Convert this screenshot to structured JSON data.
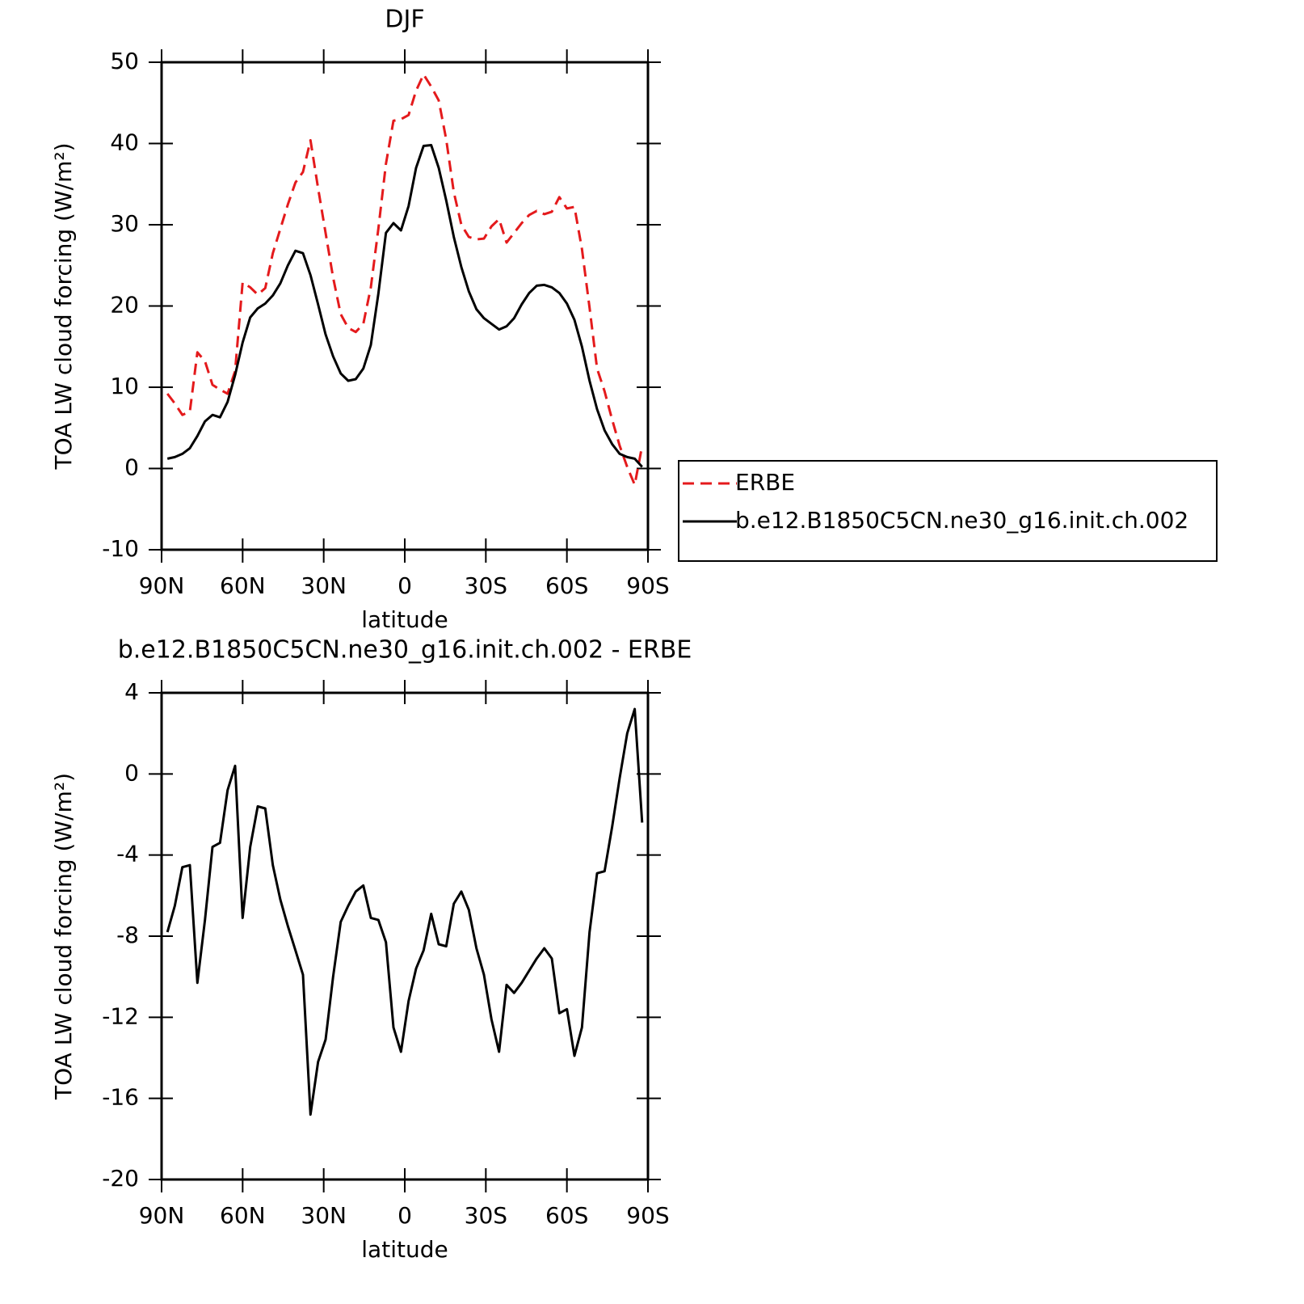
{
  "chart_data": [
    {
      "type": "line",
      "title": "DJF",
      "xlabel": "latitude",
      "ylabel": "TOA LW cloud forcing (W/m²)",
      "x": [
        87.86,
        85.1,
        82.31,
        79.53,
        76.74,
        73.95,
        71.16,
        68.37,
        65.58,
        62.79,
        60.0,
        57.21,
        54.42,
        51.63,
        48.84,
        46.05,
        43.26,
        40.47,
        37.67,
        34.88,
        32.09,
        29.3,
        26.51,
        23.72,
        20.93,
        18.14,
        15.35,
        12.56,
        9.77,
        6.98,
        4.19,
        1.4,
        -1.4,
        -4.19,
        -6.98,
        -9.77,
        -12.56,
        -15.35,
        -18.14,
        -20.93,
        -23.72,
        -26.51,
        -29.3,
        -32.09,
        -34.88,
        -37.67,
        -40.47,
        -43.26,
        -46.05,
        -48.84,
        -51.63,
        -54.42,
        -57.21,
        -60.0,
        -62.79,
        -65.58,
        -68.37,
        -71.16,
        -73.95,
        -76.74,
        -79.53,
        -82.31,
        -85.1,
        -87.86
      ],
      "series": [
        {
          "name": "ERBE",
          "color": "#e41a1c",
          "dash": "dashed",
          "values": [
            9.2,
            8.0,
            6.6,
            7.0,
            14.3,
            13.2,
            10.3,
            9.7,
            9.2,
            12.0,
            22.9,
            22.3,
            21.4,
            22.2,
            26.5,
            29.5,
            32.5,
            35.2,
            36.5,
            40.4,
            34.5,
            29.0,
            23.5,
            19.0,
            17.3,
            16.8,
            17.8,
            22.3,
            29.5,
            37.5,
            42.8,
            43.0,
            43.5,
            46.5,
            48.5,
            47.0,
            45.3,
            40.5,
            34.0,
            30.0,
            28.5,
            28.2,
            28.3,
            29.8,
            30.7,
            27.8,
            29.0,
            30.2,
            31.2,
            31.7,
            31.3,
            31.6,
            33.4,
            32.0,
            32.2,
            27.0,
            19.8,
            12.3,
            9.5,
            6.0,
            2.8,
            0.2,
            -2.0,
            2.8
          ]
        },
        {
          "name": "b.e12.B1850C5CN.ne30_g16.init.ch.002",
          "color": "#000000",
          "dash": "solid",
          "values": [
            1.2,
            1.4,
            1.8,
            2.5,
            4.0,
            5.8,
            6.6,
            6.3,
            8.2,
            11.5,
            15.5,
            18.6,
            19.7,
            20.3,
            21.3,
            22.8,
            25.0,
            26.8,
            26.5,
            23.8,
            20.2,
            16.5,
            13.8,
            11.7,
            10.8,
            11.0,
            12.3,
            15.2,
            21.5,
            29.0,
            30.2,
            29.3,
            32.3,
            37.0,
            39.7,
            39.8,
            37.0,
            33.0,
            28.5,
            24.8,
            21.8,
            19.6,
            18.5,
            17.8,
            17.1,
            17.5,
            18.5,
            20.2,
            21.6,
            22.5,
            22.6,
            22.3,
            21.6,
            20.3,
            18.3,
            15.0,
            10.8,
            7.3,
            4.7,
            3.0,
            1.8,
            1.4,
            1.2,
            0.2
          ]
        }
      ],
      "xlim": [
        90,
        -90
      ],
      "xticks": [
        {
          "value": 90,
          "label": "90N"
        },
        {
          "value": 60,
          "label": "60N"
        },
        {
          "value": 30,
          "label": "30N"
        },
        0,
        {
          "value": -30,
          "label": "30S"
        },
        {
          "value": -60,
          "label": "60S"
        },
        {
          "value": -90,
          "label": "90S"
        }
      ],
      "ylim": [
        -10,
        50
      ],
      "yticks": [
        -10,
        0,
        10,
        20,
        30,
        40,
        50
      ],
      "legend": "right"
    },
    {
      "type": "line",
      "title": "b.e12.B1850C5CN.ne30_g16.init.ch.002 - ERBE",
      "xlabel": "latitude",
      "ylabel": "TOA LW cloud forcing (W/m²)",
      "x": [
        87.86,
        85.1,
        82.31,
        79.53,
        76.74,
        73.95,
        71.16,
        68.37,
        65.58,
        62.79,
        60.0,
        57.21,
        54.42,
        51.63,
        48.84,
        46.05,
        43.26,
        40.47,
        37.67,
        34.88,
        32.09,
        29.3,
        26.51,
        23.72,
        20.93,
        18.14,
        15.35,
        12.56,
        9.77,
        6.98,
        4.19,
        1.4,
        -1.4,
        -4.19,
        -6.98,
        -9.77,
        -12.56,
        -15.35,
        -18.14,
        -20.93,
        -23.72,
        -26.51,
        -29.3,
        -32.09,
        -34.88,
        -37.67,
        -40.47,
        -43.26,
        -46.05,
        -48.84,
        -51.63,
        -54.42,
        -57.21,
        -60.0,
        -62.79,
        -65.58,
        -68.37,
        -71.16,
        -73.95,
        -76.74,
        -79.53,
        -82.31,
        -85.1,
        -87.86
      ],
      "series": [
        {
          "color": "#000000",
          "dash": "solid",
          "values": [
            -7.8,
            -6.5,
            -4.6,
            -4.5,
            -10.3,
            -7.2,
            -3.6,
            -3.4,
            -0.8,
            0.4,
            -7.1,
            -3.6,
            -1.6,
            -1.7,
            -4.5,
            -6.2,
            -7.5,
            -8.7,
            -9.9,
            -16.8,
            -14.2,
            -13.1,
            -10.0,
            -7.3,
            -6.5,
            -5.8,
            -5.5,
            -7.1,
            -7.2,
            -8.3,
            -12.5,
            -13.7,
            -11.2,
            -9.6,
            -8.7,
            -6.9,
            -8.4,
            -8.5,
            -6.4,
            -5.8,
            -6.7,
            -8.6,
            -9.9,
            -12.1,
            -13.7,
            -10.4,
            -10.8,
            -10.3,
            -9.7,
            -9.1,
            -8.6,
            -9.1,
            -11.8,
            -11.6,
            -13.9,
            -12.5,
            -7.8,
            -4.9,
            -4.8,
            -2.6,
            -0.2,
            2.0,
            3.2,
            -2.4
          ]
        }
      ],
      "xlim": [
        90,
        -90
      ],
      "xticks": [
        {
          "value": 90,
          "label": "90N"
        },
        {
          "value": 60,
          "label": "60N"
        },
        {
          "value": 30,
          "label": "30N"
        },
        0,
        {
          "value": -30,
          "label": "30S"
        },
        {
          "value": -60,
          "label": "60S"
        },
        {
          "value": -90,
          "label": "90S"
        }
      ],
      "ylim": [
        -20,
        4
      ],
      "yticks": [
        -20,
        -16,
        -12,
        -8,
        -4,
        0,
        4
      ]
    }
  ]
}
